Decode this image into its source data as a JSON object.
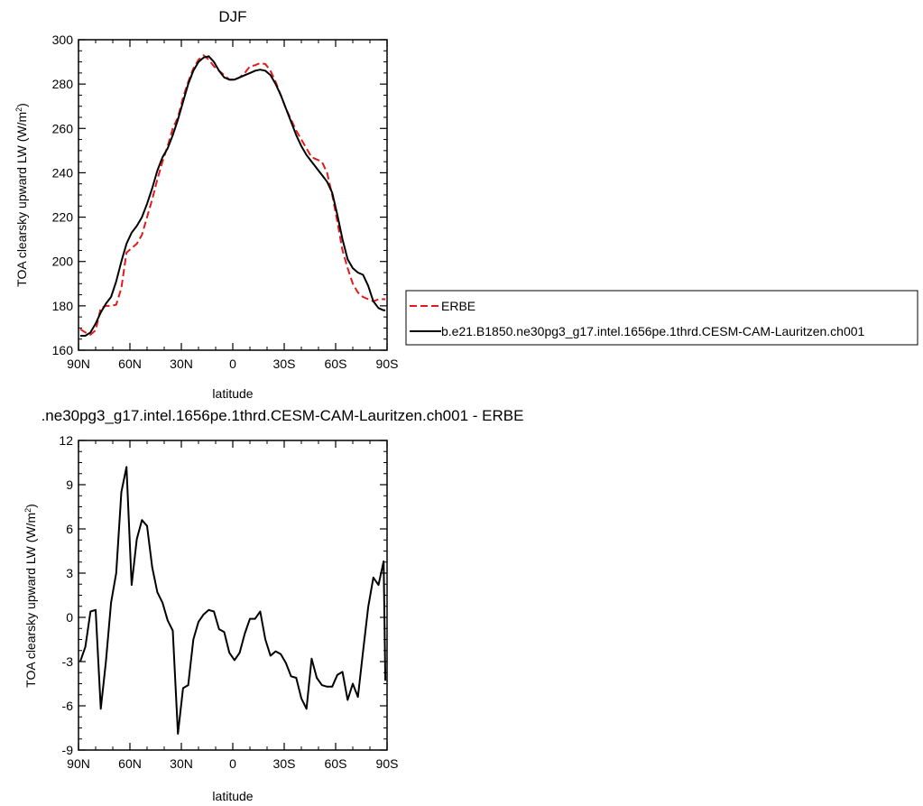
{
  "chart_data": [
    {
      "type": "line",
      "title": "DJF",
      "xlabel": "latitude",
      "ylabel_main": "TOA clearsky upward LW (W/m",
      "ylabel_sup": "2",
      "ylabel_close": ")",
      "xlim": [
        90,
        -90
      ],
      "ylim": [
        160,
        300
      ],
      "x_ticks": [
        90,
        60,
        30,
        0,
        -30,
        -60,
        -90
      ],
      "x_tick_labels": [
        "90N",
        "60N",
        "30N",
        "0",
        "30S",
        "60S",
        "90S"
      ],
      "y_ticks": [
        160,
        180,
        200,
        220,
        240,
        260,
        280,
        300
      ],
      "y_tick_labels": [
        "160",
        "180",
        "200",
        "220",
        "240",
        "260",
        "280",
        "300"
      ],
      "legend": "right-of-plot",
      "series": [
        {
          "name": "ERBE",
          "color": "#e31a1c",
          "dash": "dashed",
          "x": [
            89,
            86,
            83,
            80,
            77,
            74,
            71,
            68,
            65,
            62,
            59,
            56,
            53,
            50,
            47,
            44,
            41,
            38,
            35,
            32,
            29,
            26,
            23,
            20,
            17,
            14,
            11,
            8,
            5,
            2,
            -1,
            -4,
            -7,
            -10,
            -13,
            -16,
            -19,
            -22,
            -25,
            -28,
            -31,
            -34,
            -37,
            -40,
            -43,
            -46,
            -49,
            -52,
            -55,
            -58,
            -61,
            -64,
            -67,
            -70,
            -73,
            -76,
            -79,
            -82,
            -85,
            -88,
            -89
          ],
          "y": [
            169.5,
            168,
            167,
            169,
            179,
            180,
            180,
            180.5,
            188,
            204,
            206,
            208,
            212,
            220,
            228,
            237,
            245,
            252,
            260,
            265,
            274,
            281,
            287,
            291,
            293,
            291,
            288,
            286,
            284,
            282,
            282,
            283,
            285,
            288,
            288.5,
            289.5,
            289,
            286,
            281,
            275,
            269,
            264,
            259,
            255,
            251,
            247,
            246,
            245,
            240,
            230,
            218,
            205,
            197,
            190,
            186,
            184,
            183,
            182,
            183,
            183,
            183
          ]
        },
        {
          "name": "b.e21.B1850.ne30pg3_g17.intel.1656pe.1thrd.CESM-CAM-Lauritzen.ch001",
          "color": "#000000",
          "dash": "solid",
          "x": [
            89,
            86,
            83,
            80,
            77,
            74,
            71,
            68,
            65,
            62,
            59,
            56,
            53,
            50,
            47,
            44,
            41,
            38,
            35,
            32,
            29,
            26,
            23,
            20,
            17,
            14,
            11,
            8,
            5,
            2,
            -1,
            -4,
            -7,
            -10,
            -13,
            -16,
            -19,
            -22,
            -25,
            -28,
            -31,
            -34,
            -37,
            -40,
            -43,
            -46,
            -49,
            -52,
            -55,
            -58,
            -61,
            -64,
            -67,
            -70,
            -73,
            -76,
            -79,
            -82,
            -85,
            -88,
            -89
          ],
          "y": [
            166.5,
            166.5,
            168,
            172,
            177,
            181,
            184,
            191,
            200,
            208,
            213,
            216,
            220,
            226,
            233,
            241,
            247,
            251,
            257,
            264,
            272,
            280,
            286,
            290,
            292,
            292.5,
            290,
            286,
            283,
            282,
            282,
            283,
            284,
            285,
            286,
            286.5,
            286,
            284,
            280,
            275,
            269,
            263,
            257,
            252,
            248,
            245,
            242,
            239,
            236,
            231,
            221,
            210,
            201,
            197,
            195,
            194,
            189,
            182,
            179,
            178,
            178
          ]
        }
      ]
    },
    {
      "type": "line",
      "title": ".ne30pg3_g17.intel.1656pe.1thrd.CESM-CAM-Lauritzen.ch001 - ERBE",
      "xlabel": "latitude",
      "ylabel_main": "TOA clearsky upward LW (W/m",
      "ylabel_sup": "2",
      "ylabel_close": ")",
      "xlim": [
        90,
        -90
      ],
      "ylim": [
        -9,
        12
      ],
      "x_ticks": [
        90,
        60,
        30,
        0,
        -30,
        -60,
        -90
      ],
      "x_tick_labels": [
        "90N",
        "60N",
        "30N",
        "0",
        "30S",
        "60S",
        "90S"
      ],
      "y_ticks": [
        -9,
        -6,
        -3,
        0,
        3,
        6,
        9,
        12
      ],
      "y_tick_labels": [
        "-9",
        "-6",
        "-3",
        "0",
        "3",
        "6",
        "9",
        "12"
      ],
      "series": [
        {
          "color": "#000000",
          "dash": "solid",
          "x": [
            89,
            86,
            83,
            80,
            77,
            74,
            71,
            68,
            65,
            62,
            59,
            56,
            53,
            50,
            47,
            44,
            41,
            38,
            35,
            32,
            29,
            26,
            23,
            20,
            17,
            14,
            11,
            8,
            5,
            2,
            -1,
            -4,
            -7,
            -10,
            -13,
            -16,
            -19,
            -22,
            -25,
            -28,
            -31,
            -34,
            -37,
            -40,
            -43,
            -46,
            -49,
            -52,
            -55,
            -58,
            -61,
            -64,
            -67,
            -70,
            -73,
            -76,
            -79,
            -82,
            -85,
            -88,
            -89
          ],
          "y": [
            -3,
            -2,
            0.4,
            0.5,
            -6.2,
            -3,
            1,
            3,
            8.5,
            10.2,
            2.2,
            5.3,
            6.6,
            6.2,
            3.4,
            1.7,
            1,
            -0.2,
            -0.9,
            -7.9,
            -4.8,
            -4.6,
            -1.5,
            -0.3,
            0.2,
            0.5,
            0.4,
            -0.8,
            -1,
            -2.4,
            -2.9,
            -2.4,
            -1.1,
            -0.1,
            -0.1,
            0.4,
            -1.5,
            -2.6,
            -2.3,
            -2.5,
            -3.1,
            -4,
            -4.1,
            -5.5,
            -6.2,
            -2.8,
            -4.1,
            -4.6,
            -4.7,
            -4.7,
            -3.9,
            -3.7,
            -5.6,
            -4.5,
            -5.4,
            -2.3,
            0.7,
            2.7,
            2.2,
            3.8,
            -4.3
          ]
        }
      ]
    }
  ]
}
